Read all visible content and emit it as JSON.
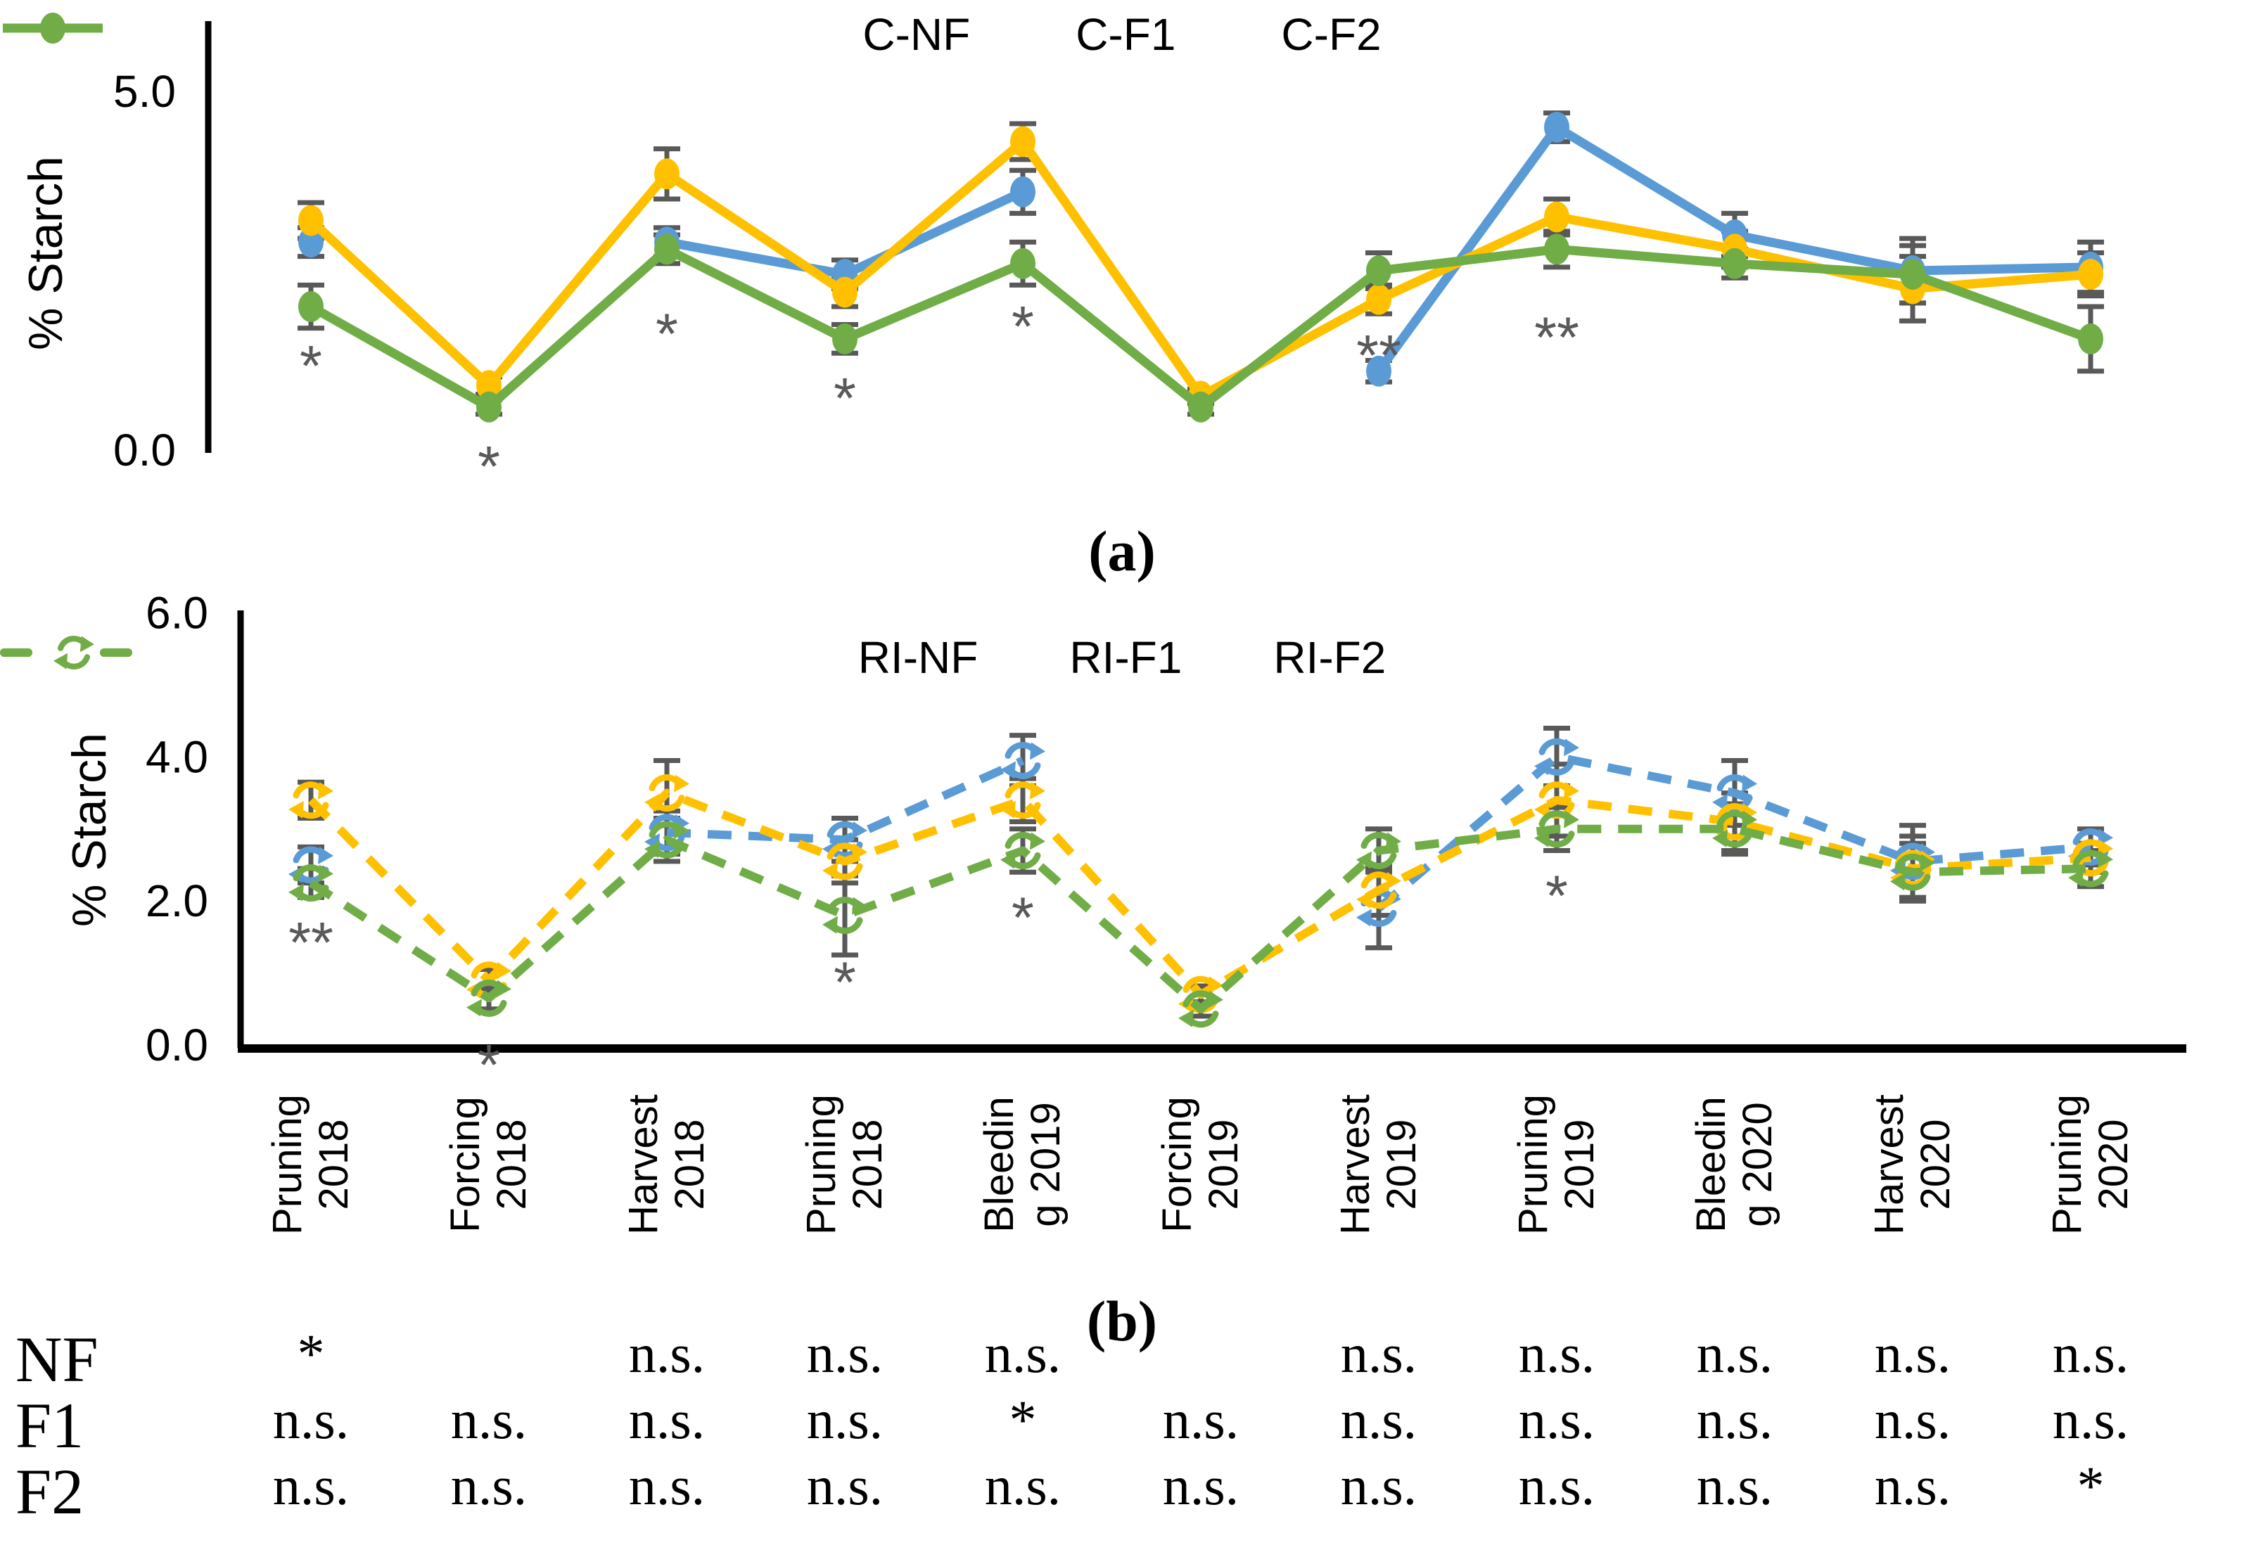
{
  "figure": {
    "caption_a": "(a)",
    "caption_b": "(b)",
    "ylabel": "% Starch"
  },
  "colors": {
    "nf": "#5B9BD5",
    "f1": "#FFC000",
    "f2": "#70AD47",
    "error_bar": "#595959",
    "annotation": "#595959",
    "axis": "#000000"
  },
  "x_categories": [
    [
      "Pruning",
      "2018"
    ],
    [
      "Forcing",
      "2018"
    ],
    [
      "Harvest",
      "2018"
    ],
    [
      "Pruning",
      "2018"
    ],
    [
      "Bleedin",
      "g 2019"
    ],
    [
      "Forcing",
      "2019"
    ],
    [
      "Harvest",
      "2019"
    ],
    [
      "Pruning",
      "2019"
    ],
    [
      "Bleedin",
      "g 2020"
    ],
    [
      "Harvest",
      "2020"
    ],
    [
      "Pruning",
      "2020"
    ]
  ],
  "chart_data": [
    {
      "id": "a",
      "type": "line",
      "title": "",
      "xlabel": "",
      "ylabel": "% Starch",
      "ylim": [
        0,
        5.5
      ],
      "yticks": [
        {
          "v": 0,
          "label": "0.0"
        },
        {
          "v": 5,
          "label": "5.0"
        }
      ],
      "grid": false,
      "legend_position": "top-center",
      "categories": [
        "Pruning 2018",
        "Forcing 2018",
        "Harvest 2018",
        "Pruning 2018",
        "Bleeding 2019",
        "Forcing 2019",
        "Harvest 2019",
        "Pruning 2019",
        "Bleeding 2020",
        "Harvest 2020",
        "Pruning 2020"
      ],
      "series": [
        {
          "name": "C-NF",
          "color_key": "nf",
          "style": "solid",
          "values": [
            2.9,
            null,
            2.9,
            2.45,
            3.6,
            null,
            1.1,
            4.5,
            3.0,
            2.5,
            2.55
          ],
          "errors": [
            0.2,
            null,
            0.2,
            0.2,
            0.3,
            null,
            0.15,
            0.2,
            0.3,
            0.45,
            0.35
          ]
        },
        {
          "name": "C-F1",
          "color_key": "f1",
          "style": "solid",
          "values": [
            3.2,
            0.9,
            3.85,
            2.2,
            4.3,
            0.75,
            2.1,
            3.25,
            2.8,
            2.25,
            2.45
          ],
          "errors": [
            0.25,
            0.12,
            0.35,
            0.2,
            0.25,
            0.1,
            0.2,
            0.25,
            0.25,
            0.45,
            0.3
          ]
        },
        {
          "name": "C-F2",
          "color_key": "f2",
          "style": "solid",
          "values": [
            2.0,
            0.6,
            2.8,
            1.55,
            2.6,
            0.6,
            2.5,
            2.8,
            2.6,
            2.45,
            1.55
          ],
          "errors": [
            0.3,
            0.1,
            0.2,
            0.2,
            0.3,
            0.1,
            0.25,
            0.25,
            0.2,
            0.4,
            0.45
          ]
        }
      ],
      "annotations": [
        {
          "cat": 0,
          "text": "*",
          "value": 1.15
        },
        {
          "cat": 1,
          "text": "*",
          "value": -0.25
        },
        {
          "cat": 2,
          "text": "*",
          "value": 1.6
        },
        {
          "cat": 3,
          "text": "*",
          "value": 0.7
        },
        {
          "cat": 4,
          "text": "*",
          "value": 1.7
        },
        {
          "cat": 6,
          "text": "**",
          "value": 1.3
        },
        {
          "cat": 7,
          "text": "**",
          "value": 1.55
        }
      ]
    },
    {
      "id": "b",
      "type": "line",
      "title": "",
      "xlabel": "",
      "ylabel": "% Starch",
      "ylim": [
        0,
        6
      ],
      "yticks": [
        {
          "v": 0,
          "label": "0.0"
        },
        {
          "v": 2,
          "label": "2.0"
        },
        {
          "v": 4,
          "label": "4.0"
        },
        {
          "v": 6,
          "label": "6.0"
        }
      ],
      "grid": false,
      "legend_position": "top-center",
      "categories": [
        "Pruning 2018",
        "Forcing 2018",
        "Harvest 2018",
        "Pruning 2018",
        "Bleeding 2019",
        "Forcing 2019",
        "Harvest 2019",
        "Pruning 2019",
        "Bleeding 2020",
        "Harvest 2020",
        "Pruning 2020"
      ],
      "series": [
        {
          "name": "RI-NF",
          "color_key": "nf",
          "style": "dashed",
          "values": [
            2.5,
            null,
            2.95,
            2.85,
            3.95,
            null,
            1.9,
            4.0,
            3.5,
            2.55,
            2.75
          ],
          "errors": [
            0.25,
            null,
            0.3,
            0.3,
            0.35,
            null,
            0.55,
            0.4,
            0.45,
            0.5,
            0.25
          ]
        },
        {
          "name": "RI-F1",
          "color_key": "f1",
          "style": "dashed",
          "values": [
            3.4,
            0.9,
            3.5,
            2.55,
            3.4,
            0.7,
            2.15,
            3.4,
            3.1,
            2.45,
            2.6
          ],
          "errors": [
            0.25,
            0.15,
            0.45,
            0.3,
            0.3,
            0.12,
            0.35,
            0.5,
            0.4,
            0.45,
            0.2
          ]
        },
        {
          "name": "RI-F2",
          "color_key": "f2",
          "style": "dashed",
          "values": [
            2.25,
            0.65,
            2.85,
            1.8,
            2.7,
            0.5,
            2.7,
            3.0,
            3.0,
            2.4,
            2.45
          ],
          "errors": [
            0.2,
            0.15,
            0.3,
            0.55,
            0.3,
            0.1,
            0.3,
            0.3,
            0.35,
            0.4,
            0.25
          ]
        }
      ],
      "annotations": [
        {
          "cat": 0,
          "text": "**",
          "value": 1.4
        },
        {
          "cat": 1,
          "text": "*",
          "value": -0.3
        },
        {
          "cat": 3,
          "text": "*",
          "value": 0.85
        },
        {
          "cat": 4,
          "text": "*",
          "value": 1.75
        },
        {
          "cat": 7,
          "text": "*",
          "value": 2.05
        }
      ]
    }
  ],
  "legends": {
    "a": [
      {
        "label": "C-NF",
        "color_key": "nf"
      },
      {
        "label": "C-F1",
        "color_key": "f1"
      },
      {
        "label": "C-F2",
        "color_key": "f2"
      }
    ],
    "b": [
      {
        "label": "RI-NF",
        "color_key": "nf"
      },
      {
        "label": "RI-F1",
        "color_key": "f1"
      },
      {
        "label": "RI-F2",
        "color_key": "f2"
      }
    ]
  },
  "significance_table": {
    "rows": [
      {
        "label": "NF",
        "cells": [
          "*",
          "",
          "n.s.",
          "n.s.",
          "n.s.",
          "",
          "n.s.",
          "n.s.",
          "n.s.",
          "n.s.",
          "n.s."
        ]
      },
      {
        "label": "F1",
        "cells": [
          "n.s.",
          "n.s.",
          "n.s.",
          "n.s.",
          "*",
          "n.s.",
          "n.s.",
          "n.s.",
          "n.s.",
          "n.s.",
          "n.s."
        ]
      },
      {
        "label": "F2",
        "cells": [
          "n.s.",
          "n.s.",
          "n.s.",
          "n.s.",
          "n.s.",
          "n.s.",
          "n.s.",
          "n.s.",
          "n.s.",
          "n.s.",
          "*"
        ]
      }
    ]
  }
}
